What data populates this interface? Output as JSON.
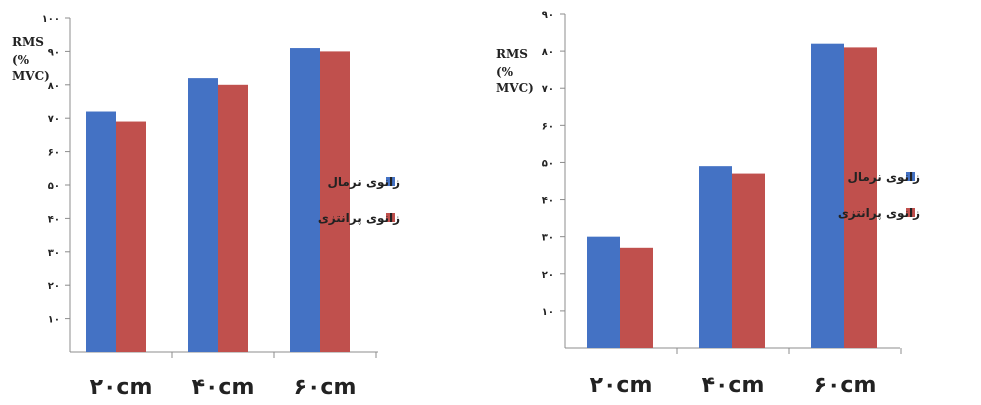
{
  "chart_data": [
    {
      "type": "bar",
      "ylabel_lines": [
        "RMS",
        "(%",
        "MVC)"
      ],
      "ylim": [
        0,
        100
      ],
      "y_ticks": [
        "۱۰",
        "۲۰",
        "۳۰",
        "۴۰",
        "۵۰",
        "۶۰",
        "۷۰",
        "۸۰",
        "۹۰",
        "۱۰۰"
      ],
      "categories": [
        "۲۰cm",
        "۴۰cm",
        "۶۰cm"
      ],
      "series": [
        {
          "name": "زانوی نرمال",
          "color": "#4472C4",
          "values": [
            72,
            82,
            91
          ]
        },
        {
          "name": "زانوی پرانتزی",
          "color": "#C0504D",
          "values": [
            69,
            80,
            90
          ]
        }
      ],
      "legend_position": "right",
      "grid": false
    },
    {
      "type": "bar",
      "ylabel_lines": [
        "RMS",
        "(%",
        "MVC)"
      ],
      "ylim": [
        0,
        90
      ],
      "y_ticks": [
        "۱۰",
        "۲۰",
        "۳۰",
        "۴۰",
        "۵۰",
        "۶۰",
        "۷۰",
        "۸۰",
        "۹۰"
      ],
      "categories": [
        "۲۰cm",
        "۴۰cm",
        "۶۰cm"
      ],
      "series": [
        {
          "name": "زانوی نرمال",
          "color": "#4472C4",
          "values": [
            30,
            49,
            82
          ]
        },
        {
          "name": "زانوی پرانتزی",
          "color": "#C0504D",
          "values": [
            27,
            47,
            81
          ]
        }
      ],
      "legend_position": "right",
      "grid": false
    }
  ]
}
